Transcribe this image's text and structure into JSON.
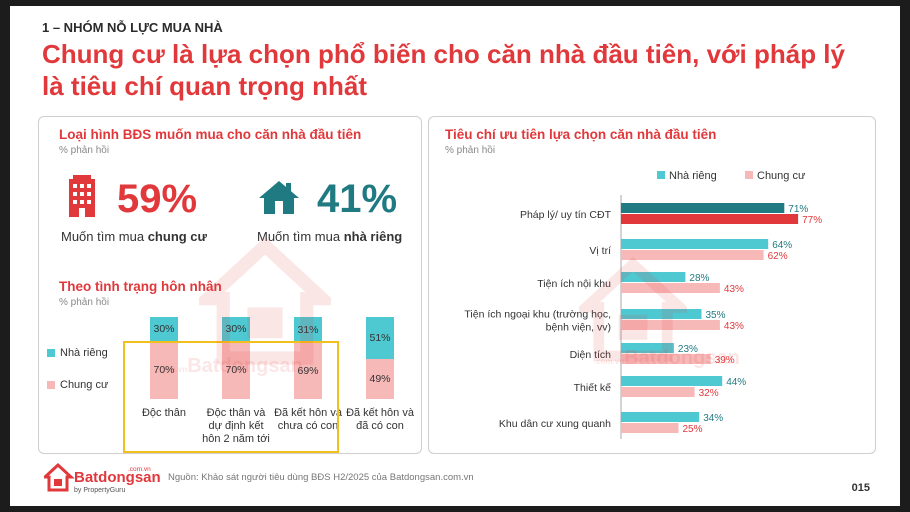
{
  "section_label": "1 – NHÓM NỖ LỰC MUA NHÀ",
  "headline": "Chung cư là lựa chọn phổ biến cho căn nhà đầu tiên, với pháp lý là tiêu chí quan trọng nhất",
  "colors": {
    "red": "#e1383b",
    "teal": "#1f7a82",
    "nha_rieng": "#4ec8d1",
    "chung_cu": "#f7b8b8",
    "highlight": "#f2c01c"
  },
  "left_panel": {
    "title": "Loại hình BĐS muốn mua cho căn nhà đầu tiên",
    "subtitle": "% phản hồi",
    "stat1": {
      "value": "59%",
      "caption_prefix": "Muốn tìm mua ",
      "caption_bold": "chung cư",
      "icon": "building-icon"
    },
    "stat2": {
      "value": "41%",
      "caption_prefix": "Muốn tìm mua ",
      "caption_bold": "nhà riêng",
      "icon": "house-icon"
    }
  },
  "chart_data": [
    {
      "type": "bar",
      "stacked": true,
      "title": "Theo tình trạng hôn nhân",
      "subtitle": "% phản hồi",
      "categories": [
        "Độc thân",
        "Độc thân và dự định kết hôn 2 năm tới",
        "Đã kết hôn và chưa có con",
        "Đã kết hôn và đã có con"
      ],
      "category_lines": [
        [
          "Độc thân"
        ],
        [
          "Độc thân và",
          "dự định kết",
          "hôn 2 năm tới"
        ],
        [
          "Đã kết hôn và",
          "chưa có con"
        ],
        [
          "Đã kết hôn và",
          "đã có con"
        ]
      ],
      "series": [
        {
          "name": "Nhà riêng",
          "values": [
            30,
            30,
            31,
            51
          ],
          "labels": [
            "30%",
            "30%",
            "31%",
            "51%"
          ]
        },
        {
          "name": "Chung cư",
          "values": [
            70,
            70,
            69,
            49
          ],
          "labels": [
            "70%",
            "70%",
            "69%",
            "49%"
          ]
        }
      ],
      "highlighted_categories": [
        0,
        1,
        2
      ]
    },
    {
      "type": "bar",
      "orientation": "horizontal",
      "title": "Tiêu chí ưu tiên lựa chọn căn nhà đầu tiên",
      "subtitle": "% phản hồi",
      "legend": "top",
      "categories": [
        "Pháp lý/ uy tín CĐT",
        "Vị trí",
        "Tiện ích nội khu",
        "Tiện ích ngoại khu (trường học, bệnh viện, vv)",
        "Diện tích",
        "Thiết kế",
        "Khu dân cư xung quanh"
      ],
      "category_lines": [
        [
          "Pháp lý/ uy tín CĐT"
        ],
        [
          "Vị trí"
        ],
        [
          "Tiện ích nội khu"
        ],
        [
          "Tiện ích ngoại khu (trường học,",
          "bệnh viện, vv)"
        ],
        [
          "Diện tích"
        ],
        [
          "Thiết kế"
        ],
        [
          "Khu dân cư xung quanh"
        ]
      ],
      "series": [
        {
          "name": "Nhà riêng",
          "values": [
            71,
            64,
            28,
            35,
            23,
            44,
            34
          ],
          "labels": [
            "71%",
            "64%",
            "28%",
            "35%",
            "23%",
            "44%",
            "34%"
          ]
        },
        {
          "name": "Chung cư",
          "values": [
            77,
            62,
            43,
            43,
            39,
            32,
            25
          ],
          "labels": [
            "77%",
            "62%",
            "43%",
            "43%",
            "39%",
            "32%",
            "25%"
          ]
        }
      ],
      "highlighted_categories": [
        0
      ]
    }
  ],
  "logo": {
    "text": "Batdongsan",
    "suffix": ".com.vn",
    "tagline": "by PropertyGuru"
  },
  "watermark": {
    "text": "Batdongsan",
    "suffix": ".com.vn"
  },
  "footer": {
    "source": "Nguồn: Khảo sát người tiêu dùng BĐS H2/2025 của Batdongsan.com.vn",
    "page": "015"
  }
}
